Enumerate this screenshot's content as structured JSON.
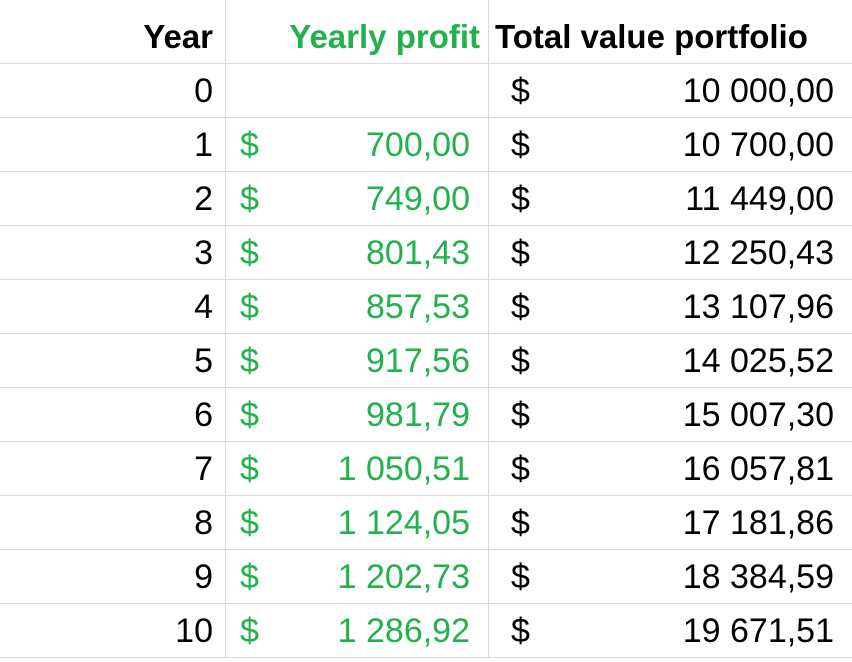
{
  "headers": {
    "year": "Year",
    "profit": "Yearly profit",
    "total": "Total value portfolio"
  },
  "currency_symbol": "$",
  "rows": [
    {
      "year": "0",
      "profit": "",
      "total": "10 000,00"
    },
    {
      "year": "1",
      "profit": "700,00",
      "total": "10 700,00"
    },
    {
      "year": "2",
      "profit": "749,00",
      "total": "11 449,00"
    },
    {
      "year": "3",
      "profit": "801,43",
      "total": "12 250,43"
    },
    {
      "year": "4",
      "profit": "857,53",
      "total": "13 107,96"
    },
    {
      "year": "5",
      "profit": "917,56",
      "total": "14 025,52"
    },
    {
      "year": "6",
      "profit": "981,79",
      "total": "15 007,30"
    },
    {
      "year": "7",
      "profit": "1 050,51",
      "total": "16 057,81"
    },
    {
      "year": "8",
      "profit": "1 124,05",
      "total": "17 181,86"
    },
    {
      "year": "9",
      "profit": "1 202,73",
      "total": "18 384,59"
    },
    {
      "year": "10",
      "profit": "1 286,92",
      "total": "19 671,51"
    }
  ],
  "colors": {
    "profit_green": "#22b14c",
    "gridline": "#d9d9d9",
    "text": "#000000"
  }
}
